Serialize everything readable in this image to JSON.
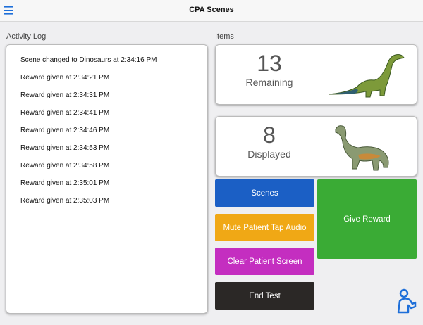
{
  "header": {
    "title": "CPA Scenes"
  },
  "activity_log": {
    "title": "Activity Log",
    "entries": [
      "Scene changed to Dinosaurs at 2:34:16 PM",
      "Reward given at 2:34:21 PM",
      "Reward given at 2:34:31 PM",
      "Reward given at 2:34:41 PM",
      "Reward given at 2:34:46 PM",
      "Reward given at 2:34:53 PM",
      "Reward given at 2:34:58 PM",
      "Reward given at 2:35:01 PM",
      "Reward given at 2:35:03 PM"
    ]
  },
  "items": {
    "title": "Items",
    "cards": [
      {
        "value": 13,
        "label": "Remaining"
      },
      {
        "value": 8,
        "label": "Displayed"
      }
    ]
  },
  "buttons": {
    "scenes": "Scenes",
    "mute": "Mute Patient Tap Audio",
    "clear": "Clear Patient Screen",
    "end": "End Test",
    "reward": "Give Reward"
  }
}
